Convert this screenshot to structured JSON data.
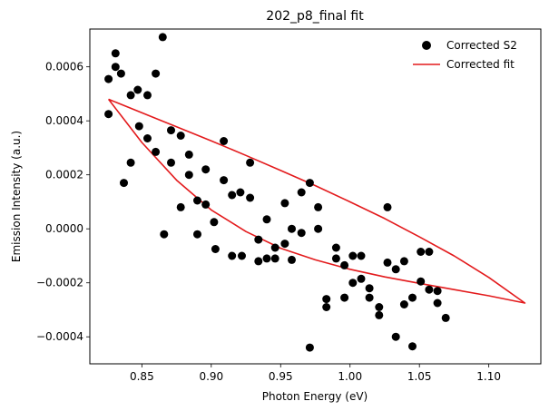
{
  "chart_data": {
    "type": "scatter",
    "title": "202_p8_final fit",
    "xlabel": "Photon Energy (eV)",
    "ylabel": "Emission Intensity (a.u.)",
    "xlim": [
      0.8125,
      1.1375
    ],
    "ylim": [
      -0.0005,
      0.00074
    ],
    "grid": false,
    "legend_position": "top-right",
    "x_ticks": [
      {
        "value": 0.85,
        "label": "0.85"
      },
      {
        "value": 0.9,
        "label": "0.90"
      },
      {
        "value": 0.95,
        "label": "0.95"
      },
      {
        "value": 1.0,
        "label": "1.00"
      },
      {
        "value": 1.05,
        "label": "1.05"
      },
      {
        "value": 1.1,
        "label": "1.10"
      }
    ],
    "y_ticks": [
      {
        "value": -0.0004,
        "label": "−0.0004"
      },
      {
        "value": -0.0002,
        "label": "−0.0002"
      },
      {
        "value": 0.0,
        "label": "0.0000"
      },
      {
        "value": 0.0002,
        "label": "0.0002"
      },
      {
        "value": 0.0004,
        "label": "0.0004"
      },
      {
        "value": 0.0006,
        "label": "0.0006"
      }
    ],
    "series": [
      {
        "name": "Corrected S2",
        "kind": "scatter",
        "color": "#000000",
        "points": [
          [
            0.826,
            0.000555
          ],
          [
            0.826,
            0.000425
          ],
          [
            0.831,
            0.00065
          ],
          [
            0.831,
            0.0006
          ],
          [
            0.835,
            0.000575
          ],
          [
            0.837,
            0.00017
          ],
          [
            0.842,
            0.000495
          ],
          [
            0.842,
            0.000245
          ],
          [
            0.847,
            0.000515
          ],
          [
            0.848,
            0.00038
          ],
          [
            0.854,
            0.000495
          ],
          [
            0.854,
            0.000335
          ],
          [
            0.86,
            0.000575
          ],
          [
            0.86,
            0.000285
          ],
          [
            0.865,
            0.00071
          ],
          [
            0.866,
            -2e-05
          ],
          [
            0.871,
            0.000365
          ],
          [
            0.871,
            0.000245
          ],
          [
            0.878,
            0.000345
          ],
          [
            0.878,
            8e-05
          ],
          [
            0.884,
            0.000275
          ],
          [
            0.884,
            0.0002
          ],
          [
            0.89,
            0.000105
          ],
          [
            0.89,
            -2e-05
          ],
          [
            0.896,
            0.00022
          ],
          [
            0.896,
            9e-05
          ],
          [
            0.902,
            2.5e-05
          ],
          [
            0.903,
            -7.5e-05
          ],
          [
            0.909,
            0.000325
          ],
          [
            0.909,
            0.00018
          ],
          [
            0.915,
            0.000125
          ],
          [
            0.915,
            -0.0001
          ],
          [
            0.921,
            0.000135
          ],
          [
            0.922,
            -0.0001
          ],
          [
            0.928,
            0.000245
          ],
          [
            0.928,
            0.000115
          ],
          [
            0.934,
            -4e-05
          ],
          [
            0.934,
            -0.00012
          ],
          [
            0.94,
            3.5e-05
          ],
          [
            0.94,
            -0.00011
          ],
          [
            0.946,
            -7e-05
          ],
          [
            0.946,
            -0.00011
          ],
          [
            0.953,
            9.5e-05
          ],
          [
            0.953,
            -5.5e-05
          ],
          [
            0.958,
            0.0
          ],
          [
            0.958,
            -0.000115
          ],
          [
            0.965,
            0.000135
          ],
          [
            0.965,
            -1.5e-05
          ],
          [
            0.971,
            0.00017
          ],
          [
            0.971,
            -0.00044
          ],
          [
            0.977,
            8e-05
          ],
          [
            0.977,
            0.0
          ],
          [
            0.983,
            -0.00026
          ],
          [
            0.983,
            -0.00029
          ],
          [
            0.99,
            -7e-05
          ],
          [
            0.99,
            -0.00011
          ],
          [
            0.996,
            -0.000135
          ],
          [
            0.996,
            -0.000255
          ],
          [
            1.002,
            -0.0001
          ],
          [
            1.002,
            -0.0002
          ],
          [
            1.008,
            -0.0001
          ],
          [
            1.008,
            -0.000185
          ],
          [
            1.014,
            -0.00022
          ],
          [
            1.014,
            -0.000255
          ],
          [
            1.021,
            -0.00029
          ],
          [
            1.021,
            -0.00032
          ],
          [
            1.027,
            8e-05
          ],
          [
            1.027,
            -0.000125
          ],
          [
            1.033,
            -0.00015
          ],
          [
            1.033,
            -0.0004
          ],
          [
            1.039,
            -0.00012
          ],
          [
            1.039,
            -0.00028
          ],
          [
            1.045,
            -0.000435
          ],
          [
            1.045,
            -0.000255
          ],
          [
            1.051,
            -8.5e-05
          ],
          [
            1.051,
            -0.000195
          ],
          [
            1.057,
            -8.5e-05
          ],
          [
            1.057,
            -0.000225
          ],
          [
            1.063,
            -0.00023
          ],
          [
            1.063,
            -0.000275
          ],
          [
            1.069,
            -0.00033
          ]
        ]
      },
      {
        "name": "Corrected fit",
        "kind": "line",
        "color": "#e31a1c",
        "points": [
          [
            0.826,
            0.00048
          ],
          [
            0.85,
            0.00043
          ],
          [
            0.875,
            0.000378
          ],
          [
            0.9,
            0.000326
          ],
          [
            0.925,
            0.000272
          ],
          [
            0.95,
            0.000216
          ],
          [
            0.975,
            0.00016
          ],
          [
            1.0,
            0.0001
          ],
          [
            1.025,
            3.8e-05
          ],
          [
            1.05,
            -3e-05
          ],
          [
            1.075,
            -0.0001
          ],
          [
            1.1,
            -0.00018
          ],
          [
            1.126,
            -0.000275
          ],
          [
            1.1,
            -0.000248
          ],
          [
            1.075,
            -0.000225
          ],
          [
            1.05,
            -0.000202
          ],
          [
            1.025,
            -0.000178
          ],
          [
            1.0,
            -0.00015
          ],
          [
            0.975,
            -0.000115
          ],
          [
            0.95,
            -7.2e-05
          ],
          [
            0.925,
            -1e-05
          ],
          [
            0.9,
            7e-05
          ],
          [
            0.875,
            0.00018
          ],
          [
            0.85,
            0.00032
          ],
          [
            0.826,
            0.00048
          ]
        ]
      }
    ]
  }
}
